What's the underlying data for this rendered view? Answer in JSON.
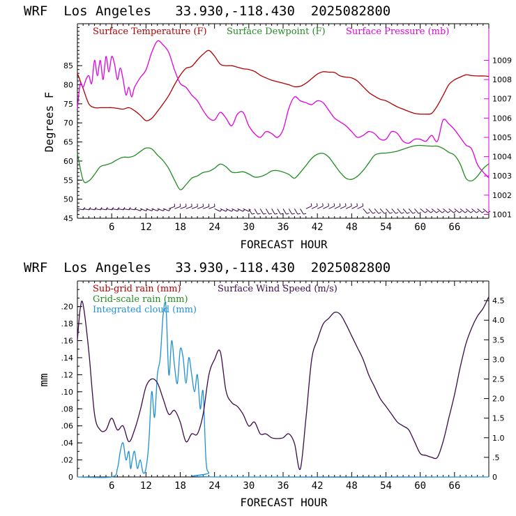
{
  "colors": {
    "temperature": "#b00000",
    "dewpoint": "#228b22",
    "pressure": "#e000e0",
    "subgrid_rain": "#b00000",
    "gridscale_rain": "#228b22",
    "cloud": "#1e90d8",
    "wind_speed": "#3c0a4a",
    "axis": "#000000"
  },
  "chart_data": [
    {
      "type": "line",
      "title": "WRF  Los Angeles   33.930,-118.430  2025082800",
      "xlabel": "FORECAST HOUR",
      "ylabel": "Degrees F",
      "xlim": [
        0,
        72
      ],
      "ylim": [
        45,
        96
      ],
      "y2lim": [
        1000.8,
        1010.9
      ],
      "x_ticks": [
        "6",
        "12",
        "18",
        "24",
        "30",
        "36",
        "42",
        "48",
        "54",
        "60",
        "66"
      ],
      "y_ticks": [
        "45",
        "50",
        "55",
        "60",
        "65",
        "70",
        "75",
        "80",
        "85"
      ],
      "y2_ticks": [
        "1001",
        "1002",
        "1003",
        "1004",
        "1005",
        "1006",
        "1007",
        "1008",
        "1009"
      ],
      "series": [
        {
          "name": "Surface Temperature (F)",
          "axis": "left",
          "x": [
            0,
            1,
            2,
            3,
            4,
            5,
            6,
            7,
            8,
            9,
            10,
            11,
            12,
            13,
            14,
            15,
            16,
            17,
            18,
            19,
            20,
            21,
            22,
            23,
            24,
            25,
            26,
            27,
            28,
            29,
            30,
            31,
            32,
            33,
            34,
            35,
            36,
            37,
            38,
            39,
            40,
            41,
            42,
            43,
            44,
            45,
            46,
            47,
            48,
            49,
            50,
            51,
            52,
            53,
            54,
            55,
            56,
            57,
            58,
            59,
            60,
            61,
            62,
            63,
            64,
            65,
            66,
            67,
            68,
            69,
            70,
            71,
            72
          ],
          "values": [
            83,
            79,
            75,
            74,
            74,
            74,
            74,
            73.8,
            73.6,
            74,
            73.2,
            72,
            70.6,
            71.2,
            73,
            75,
            77.2,
            80,
            82.5,
            84.3,
            84.8,
            86.5,
            88,
            89,
            87.5,
            85.4,
            85,
            85,
            84.6,
            84.2,
            84,
            83.5,
            82.5,
            81.8,
            81.2,
            80.8,
            80.4,
            80,
            79.5,
            79.6,
            80.4,
            81.6,
            82.8,
            83.4,
            83.3,
            83.2,
            82.3,
            82,
            81.8,
            81,
            79.5,
            78,
            77,
            76.2,
            75.8,
            75,
            74.2,
            73.6,
            73,
            72.5,
            72.3,
            72.3,
            72.5,
            74.5,
            77.2,
            80,
            81.3,
            82,
            82.6,
            82.4,
            82.3,
            82.3,
            82.2
          ]
        },
        {
          "name": "Surface Dewpoint (F)",
          "axis": "left",
          "x": [
            0,
            1,
            2,
            3,
            4,
            5,
            6,
            7,
            8,
            9,
            10,
            11,
            12,
            13,
            14,
            15,
            16,
            17,
            18,
            19,
            20,
            21,
            22,
            23,
            24,
            25,
            26,
            27,
            28,
            29,
            30,
            31,
            32,
            33,
            34,
            35,
            36,
            37,
            38,
            39,
            40,
            41,
            42,
            43,
            44,
            45,
            46,
            47,
            48,
            49,
            50,
            51,
            52,
            53,
            54,
            55,
            56,
            57,
            58,
            59,
            60,
            61,
            62,
            63,
            64,
            65,
            66,
            67,
            68,
            69,
            70,
            71,
            72
          ],
          "values": [
            62,
            55,
            54.8,
            56.5,
            58.5,
            59,
            59.5,
            60.4,
            61,
            61,
            61.4,
            62.5,
            63.4,
            63.2,
            61.6,
            60.1,
            58,
            55,
            52.5,
            53.8,
            55.5,
            56.1,
            57,
            57.3,
            58.1,
            59.2,
            58.5,
            57.1,
            57,
            57.2,
            56.6,
            55.8,
            55.9,
            56.5,
            57.4,
            57.5,
            57.1,
            56.5,
            55.5,
            57,
            58.8,
            60.7,
            61.8,
            62,
            61,
            59,
            57,
            55.5,
            55.2,
            56,
            57.5,
            59.5,
            61.5,
            62,
            62.1,
            62.3,
            62.6,
            63.1,
            63.6,
            64,
            64.1,
            64,
            63.9,
            63.9,
            63.3,
            62.3,
            61.5,
            59.2,
            55.5,
            54.8,
            56,
            58,
            59.3
          ]
        },
        {
          "name": "Surface Pressure (mb)",
          "axis": "right",
          "x": [
            0,
            0.5,
            1,
            1.5,
            2,
            2.5,
            3,
            3.5,
            4,
            4.5,
            5,
            5.5,
            6,
            6.5,
            7,
            7.5,
            8,
            8.5,
            9,
            9.5,
            10,
            11,
            12,
            13,
            14,
            15,
            16,
            17,
            18,
            19,
            20,
            21,
            22,
            23,
            24,
            25,
            26,
            27,
            28,
            29,
            30,
            31,
            32,
            33,
            34,
            35,
            36,
            37,
            38,
            39,
            40,
            41,
            42,
            43,
            44,
            45,
            46,
            47,
            48,
            49,
            50,
            51,
            52,
            53,
            54,
            55,
            56,
            57,
            58,
            59,
            60,
            61,
            62,
            63,
            64,
            65,
            66,
            67,
            68,
            69,
            70,
            71,
            72
          ],
          "values": [
            1006.5,
            1007.8,
            1007.6,
            1008.0,
            1008.2,
            1007.8,
            1009.0,
            1008.2,
            1009.0,
            1008.0,
            1009.2,
            1008.4,
            1009.2,
            1008.8,
            1008.0,
            1008.6,
            1008.0,
            1007.2,
            1007.6,
            1007.1,
            1007.6,
            1008.1,
            1008.5,
            1009.4,
            1010.0,
            1009.8,
            1009.4,
            1008.5,
            1007.8,
            1007.6,
            1007.2,
            1006.9,
            1006.4,
            1006.0,
            1005.9,
            1006.3,
            1006.0,
            1005.6,
            1006.2,
            1006.3,
            1005.6,
            1005.2,
            1005.0,
            1005.3,
            1005.2,
            1005.0,
            1005.4,
            1006.5,
            1007.1,
            1006.9,
            1006.8,
            1006.7,
            1006.9,
            1006.8,
            1006.4,
            1006.0,
            1005.8,
            1005.6,
            1005.3,
            1005.0,
            1005.1,
            1005.3,
            1005.2,
            1004.9,
            1004.9,
            1005.3,
            1005.2,
            1004.8,
            1004.7,
            1004.9,
            1004.9,
            1004.8,
            1005.1,
            1004.8,
            1005.9,
            1005.7,
            1005.4,
            1005.0,
            1004.6,
            1004.4,
            1003.6,
            1003.2,
            1002.9
          ]
        }
      ],
      "wind_barbs_row_y": 47.5
    },
    {
      "type": "line",
      "title": "WRF  Los Angeles   33.930,-118.430  2025082800",
      "xlabel": "FORECAST HOUR",
      "ylabel": "mm",
      "xlim": [
        0,
        72
      ],
      "ylim": [
        0,
        0.23
      ],
      "y2lim": [
        0,
        5.0
      ],
      "x_ticks": [
        "6",
        "12",
        "18",
        "24",
        "30",
        "36",
        "42",
        "48",
        "54",
        "60",
        "66"
      ],
      "y_ticks": [
        "0",
        ".02",
        ".04",
        ".06",
        ".08",
        ".10",
        ".12",
        ".14",
        ".16",
        ".18",
        ".20"
      ],
      "y2_ticks": [
        "0",
        ".5",
        "1.0",
        "1.5",
        "2.0",
        "2.5",
        "3.0",
        "3.5",
        "4.0",
        "4.5"
      ],
      "series": [
        {
          "name": "Sub-grid rain (mm)",
          "axis": "left",
          "x": [],
          "values": []
        },
        {
          "name": "Grid-scale rain (mm)",
          "axis": "left",
          "x": [],
          "values": []
        },
        {
          "name": "Integrated cloud (mm)",
          "axis": "left",
          "x": [
            0,
            6,
            7,
            7.5,
            8,
            8.5,
            9,
            9.3,
            9.6,
            10,
            10.5,
            11,
            11.5,
            12,
            12.5,
            13,
            13.5,
            14,
            14.5,
            15,
            15.5,
            16,
            16.5,
            17,
            17.5,
            18,
            18.5,
            19,
            19.5,
            20,
            20.5,
            21,
            21.5,
            22,
            22.5,
            23,
            24,
            72
          ],
          "values": [
            0,
            0,
            0.01,
            0.03,
            0.04,
            0.02,
            0.03,
            0.01,
            0.02,
            0.03,
            0.01,
            0.02,
            0.005,
            0.01,
            0.04,
            0.1,
            0.07,
            0.12,
            0.14,
            0.19,
            0.2,
            0.12,
            0.16,
            0.13,
            0.11,
            0.15,
            0.14,
            0.11,
            0.14,
            0.12,
            0.1,
            0.12,
            0.08,
            0.1,
            0.02,
            0.005,
            0,
            0
          ]
        },
        {
          "name": "Surface Wind Speed (m/s)",
          "axis": "right",
          "x": [
            0,
            0.5,
            1,
            2,
            3,
            4,
            5,
            6,
            7,
            8,
            9,
            10,
            11,
            12,
            13,
            14,
            15,
            16,
            17,
            18,
            19,
            20,
            21,
            22,
            23,
            24,
            25,
            26,
            27,
            28,
            29,
            30,
            31,
            32,
            33,
            34,
            35,
            36,
            37,
            38,
            39,
            40,
            41,
            42,
            43,
            44,
            45,
            46,
            47,
            48,
            49,
            50,
            51,
            52,
            53,
            54,
            55,
            56,
            57,
            58,
            59,
            60,
            61,
            62,
            63,
            64,
            65,
            66,
            67,
            68,
            69,
            70,
            71,
            72
          ],
          "values": [
            3.5,
            4.3,
            4.4,
            3.2,
            1.6,
            1.2,
            1.2,
            1.5,
            1.2,
            1.3,
            0.9,
            1.2,
            1.7,
            2.3,
            2.5,
            2.4,
            2.0,
            1.6,
            1.7,
            1.4,
            0.9,
            1.1,
            1.1,
            1.6,
            2.6,
            3.0,
            3.2,
            2.2,
            1.9,
            1.8,
            1.6,
            1.3,
            1.4,
            1.1,
            1.1,
            1.0,
            0.98,
            1.0,
            1.1,
            0.85,
            0.2,
            1.5,
            3.0,
            3.5,
            3.9,
            4.05,
            4.2,
            4.15,
            3.9,
            3.6,
            3.3,
            3.0,
            2.6,
            2.3,
            2.0,
            1.8,
            1.6,
            1.4,
            1.3,
            1.2,
            0.9,
            0.6,
            0.55,
            0.5,
            0.5,
            0.9,
            1.5,
            2.1,
            2.8,
            3.4,
            3.8,
            4.1,
            4.3,
            4.6
          ]
        }
      ]
    }
  ]
}
